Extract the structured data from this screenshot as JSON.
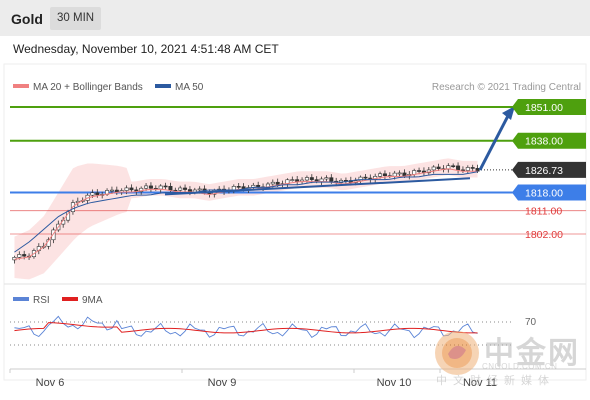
{
  "header": {
    "title": "Gold",
    "timeframe": "30 MIN",
    "datetime": "Wednesday, November 10, 2021 4:51:48 AM CET"
  },
  "legend": {
    "ma20_label": "MA 20 + Bollinger Bands",
    "ma50_label": "MA 50",
    "credit": "Research © 2021 Trading Central",
    "rsi_label": "RSI",
    "rsi_ma_label": "9MA"
  },
  "levels": [
    {
      "value": "1851.00",
      "kind": "target",
      "color": "#4ea00e"
    },
    {
      "value": "1838.00",
      "kind": "resistance",
      "color": "#4ea00e"
    },
    {
      "value": "1826.73",
      "kind": "last",
      "color": "#333333"
    },
    {
      "value": "1818.00",
      "kind": "pivot",
      "color": "#3d7ee8"
    },
    {
      "value": "1811.00",
      "kind": "support",
      "color": "#e03a3a"
    },
    {
      "value": "1802.00",
      "kind": "support",
      "color": "#e03a3a"
    }
  ],
  "rsi_level": "70",
  "x_labels": [
    "Nov 6",
    "Nov 9",
    "Nov 10",
    "Nov 11"
  ],
  "watermark": {
    "name": "中金网",
    "url": "CNGOLD.COM.CN",
    "tagline": "中文财经新媒体"
  },
  "chart_data": {
    "type": "candlestick",
    "series": [
      {
        "name": "MA 20 + Bollinger Bands",
        "color": "#f08080"
      },
      {
        "name": "MA 50",
        "color": "#2c5aa0"
      },
      {
        "name": "RSI",
        "color": "#5b84d6"
      },
      {
        "name": "9MA",
        "color": "#e02020"
      }
    ],
    "close_path": [
      1793,
      1794,
      1798,
      1806,
      1814,
      1817,
      1818,
      1819,
      1819,
      1820,
      1820,
      1819,
      1819,
      1818,
      1819,
      1820,
      1820,
      1821,
      1822,
      1823,
      1823,
      1823,
      1822,
      1823,
      1824,
      1825,
      1825,
      1826,
      1827,
      1828,
      1827,
      1827
    ],
    "ma50_path": [
      1795,
      1799,
      1804,
      1809,
      1812,
      1814,
      1815,
      1816,
      1817,
      1817,
      1818,
      1818,
      1818,
      1819,
      1819,
      1819,
      1820,
      1820,
      1821,
      1821,
      1822,
      1822,
      1822,
      1823,
      1823,
      1823,
      1824,
      1824,
      1825,
      1825,
      1825,
      1826
    ],
    "forecast": {
      "from": 1826.73,
      "to": 1851.0,
      "direction": "up"
    },
    "rsi_overbought": 70,
    "x_ticks": [
      "Nov 6",
      "Nov 9",
      "Nov 10",
      "Nov 11"
    ]
  }
}
